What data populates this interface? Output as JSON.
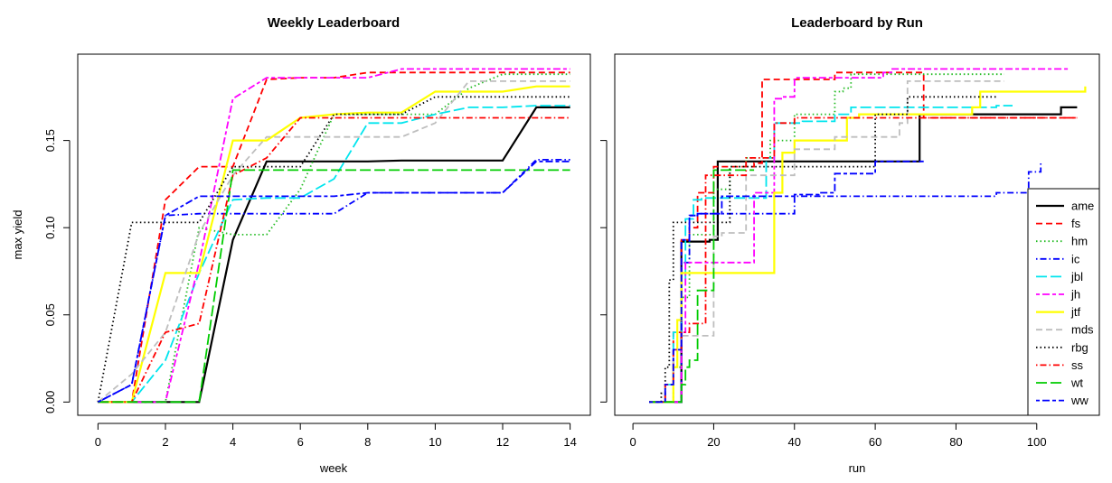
{
  "colors": {
    "ame": "#000000",
    "fs": "#ff0000",
    "hm": "#22bb22",
    "ic": "#0000ff",
    "jbl": "#00e5ee",
    "jh": "#ff00ff",
    "jtf": "#ffff00",
    "mds": "#bebebe",
    "rbg": "#000000",
    "ss": "#ff0000",
    "wt": "#00cc00",
    "ww": "#0000ff"
  },
  "legend": {
    "position": "bottom-right",
    "entries": [
      "ame",
      "fs",
      "hm",
      "ic",
      "jbl",
      "jh",
      "jtf",
      "mds",
      "rbg",
      "ss",
      "wt",
      "ww"
    ]
  },
  "chart_data": [
    {
      "type": "line",
      "title": "Weekly Leaderboard",
      "xlabel": "week",
      "ylabel": "max yield",
      "xlim": [
        -0.6,
        14.6
      ],
      "ylim": [
        -0.0076,
        0.1995
      ],
      "xticks": [
        0,
        2,
        4,
        6,
        8,
        10,
        12,
        14
      ],
      "yticks": [
        0.0,
        0.05,
        0.1,
        0.15
      ],
      "ytick_labels": [
        "0.00",
        "0.05",
        "0.10",
        "0.15"
      ],
      "grid": false,
      "series": [
        {
          "name": "ame",
          "style": "solid",
          "x": [
            0,
            1,
            2,
            3,
            4,
            5,
            6,
            7,
            8,
            9,
            10,
            11,
            12,
            13,
            14
          ],
          "y": [
            0,
            0,
            0,
            0,
            0.093,
            0.138,
            0.138,
            0.138,
            0.138,
            0.1385,
            0.1385,
            0.1385,
            0.1385,
            0.169,
            0.169
          ]
        },
        {
          "name": "fs",
          "style": "dashed",
          "x": [
            0,
            1,
            2,
            3,
            4,
            5,
            6,
            7,
            8,
            9,
            10,
            11,
            12,
            13,
            14
          ],
          "y": [
            0,
            0,
            0.116,
            0.135,
            0.135,
            0.185,
            0.186,
            0.186,
            0.189,
            0.189,
            0.189,
            0.189,
            0.189,
            0.189,
            0.189
          ]
        },
        {
          "name": "hm",
          "style": "dotted",
          "x": [
            0,
            1,
            2,
            3,
            4,
            5,
            6,
            7,
            8,
            9,
            10,
            11,
            12,
            13,
            14
          ],
          "y": [
            0,
            0,
            0,
            0.1,
            0.096,
            0.096,
            0.122,
            0.165,
            0.165,
            0.165,
            0.165,
            0.18,
            0.188,
            0.188,
            0.188
          ]
        },
        {
          "name": "ic",
          "style": "dashdot",
          "x": [
            0,
            1,
            2,
            3,
            4,
            5,
            6,
            7,
            8,
            9,
            10,
            11,
            12,
            13,
            14
          ],
          "y": [
            0,
            0.01,
            0.107,
            0.108,
            0.108,
            0.108,
            0.108,
            0.108,
            0.12,
            0.12,
            0.12,
            0.12,
            0.12,
            0.139,
            0.139
          ]
        },
        {
          "name": "jbl",
          "style": "longdash",
          "x": [
            0,
            1,
            2,
            3,
            4,
            5,
            6,
            7,
            8,
            9,
            10,
            11,
            12,
            13,
            14
          ],
          "y": [
            0,
            0,
            0.024,
            0.074,
            0.116,
            0.117,
            0.117,
            0.128,
            0.16,
            0.16,
            0.165,
            0.169,
            0.169,
            0.17,
            0.17
          ]
        },
        {
          "name": "jh",
          "style": "twodash",
          "x": [
            0,
            1,
            2,
            3,
            4,
            5,
            6,
            7,
            8,
            9,
            10,
            11,
            12,
            13,
            14
          ],
          "y": [
            0,
            0,
            0,
            0.08,
            0.174,
            0.186,
            0.186,
            0.186,
            0.186,
            0.191,
            0.191,
            0.191,
            0.191,
            0.191,
            0.191
          ]
        },
        {
          "name": "jtf",
          "style": "solid",
          "x": [
            0,
            1,
            2,
            3,
            4,
            5,
            6,
            7,
            8,
            9,
            10,
            11,
            12,
            13,
            14
          ],
          "y": [
            0,
            0,
            0.074,
            0.074,
            0.15,
            0.15,
            0.163,
            0.165,
            0.166,
            0.166,
            0.178,
            0.178,
            0.178,
            0.181,
            0.181
          ]
        },
        {
          "name": "mds",
          "style": "dashed",
          "x": [
            0,
            1,
            2,
            3,
            4,
            5,
            6,
            7,
            8,
            9,
            10,
            11,
            12,
            13,
            14
          ],
          "y": [
            0,
            0.016,
            0.04,
            0.097,
            0.13,
            0.152,
            0.152,
            0.152,
            0.152,
            0.152,
            0.16,
            0.184,
            0.184,
            0.184,
            0.184
          ]
        },
        {
          "name": "rbg",
          "style": "dotted",
          "x": [
            0,
            1,
            2,
            3,
            4,
            5,
            6,
            7,
            8,
            9,
            10,
            11,
            12,
            13,
            14
          ],
          "y": [
            0,
            0.103,
            0.103,
            0.103,
            0.135,
            0.135,
            0.135,
            0.165,
            0.165,
            0.165,
            0.175,
            0.175,
            0.175,
            0.175,
            0.175
          ]
        },
        {
          "name": "ss",
          "style": "dashdot",
          "x": [
            0,
            1,
            2,
            3,
            4,
            5,
            6,
            7,
            8,
            9,
            10,
            11,
            12,
            13,
            14
          ],
          "y": [
            0,
            0,
            0.04,
            0.045,
            0.13,
            0.14,
            0.163,
            0.163,
            0.163,
            0.163,
            0.163,
            0.163,
            0.163,
            0.163,
            0.163
          ]
        },
        {
          "name": "wt",
          "style": "longdash",
          "x": [
            0,
            1,
            2,
            3,
            4,
            5,
            6,
            7,
            8,
            9,
            10,
            11,
            12,
            13,
            14
          ],
          "y": [
            0,
            0,
            0,
            0,
            0.133,
            0.133,
            0.133,
            0.133,
            0.133,
            0.133,
            0.133,
            0.133,
            0.133,
            0.133,
            0.133
          ]
        },
        {
          "name": "ww",
          "style": "twodash",
          "x": [
            0,
            1,
            2,
            3,
            4,
            5,
            6,
            7,
            8,
            9,
            10,
            11,
            12,
            13,
            14
          ],
          "y": [
            0,
            0.01,
            0.107,
            0.118,
            0.118,
            0.118,
            0.118,
            0.118,
            0.12,
            0.12,
            0.12,
            0.12,
            0.12,
            0.138,
            0.138
          ]
        }
      ]
    },
    {
      "type": "line",
      "title": "Leaderboard by Run",
      "xlabel": "run",
      "ylabel": "",
      "xlim": [
        -4.5,
        115.5
      ],
      "ylim": [
        -0.0076,
        0.1995
      ],
      "xticks": [
        0,
        20,
        40,
        60,
        80,
        100
      ],
      "yticks": [
        0.0,
        0.05,
        0.1,
        0.15
      ],
      "grid": false,
      "step": true,
      "series": [
        {
          "name": "ame",
          "style": "solid",
          "x": [
            4,
            11,
            12,
            19,
            21,
            30,
            40,
            50,
            60,
            70,
            71,
            80,
            90,
            100,
            106,
            110
          ],
          "y": [
            0,
            0,
            0.092,
            0.093,
            0.138,
            0.138,
            0.138,
            0.138,
            0.138,
            0.138,
            0.165,
            0.165,
            0.165,
            0.165,
            0.169,
            0.169
          ]
        },
        {
          "name": "fs",
          "style": "dashed",
          "x": [
            4,
            8,
            10,
            12,
            14,
            16,
            20,
            25,
            27,
            30,
            32,
            40,
            46,
            50,
            55,
            62,
            68,
            72,
            110
          ],
          "y": [
            0,
            0.01,
            0.04,
            0.093,
            0.1,
            0.12,
            0.135,
            0.135,
            0.135,
            0.137,
            0.185,
            0.185,
            0.185,
            0.189,
            0.189,
            0.189,
            0.189,
            0.163,
            0.163
          ]
        },
        {
          "name": "hm",
          "style": "dotted",
          "x": [
            4,
            8,
            10,
            12,
            14,
            17,
            20,
            24,
            28,
            34,
            40,
            45,
            50,
            52,
            54,
            64,
            92
          ],
          "y": [
            0,
            0,
            0.02,
            0.06,
            0.096,
            0.096,
            0.122,
            0.135,
            0.14,
            0.15,
            0.165,
            0.165,
            0.178,
            0.18,
            0.188,
            0.188,
            0.188
          ]
        },
        {
          "name": "ic",
          "style": "dashdot",
          "x": [
            4,
            5,
            12,
            14,
            16,
            20,
            30,
            38,
            40,
            44,
            50,
            70,
            80,
            84,
            88,
            90,
            98,
            100,
            101
          ],
          "y": [
            0,
            0,
            0.08,
            0.107,
            0.108,
            0.108,
            0.108,
            0.108,
            0.118,
            0.118,
            0.118,
            0.118,
            0.118,
            0.118,
            0.118,
            0.12,
            0.132,
            0.132,
            0.138
          ]
        },
        {
          "name": "jbl",
          "style": "longdash",
          "x": [
            4,
            8,
            10,
            12,
            13,
            15,
            17,
            20,
            25,
            30,
            33,
            35,
            37,
            40,
            42,
            50,
            54,
            70,
            90,
            94
          ],
          "y": [
            0,
            0.01,
            0.04,
            0.07,
            0.105,
            0.116,
            0.117,
            0.117,
            0.117,
            0.117,
            0.14,
            0.16,
            0.16,
            0.16,
            0.161,
            0.165,
            0.169,
            0.169,
            0.17,
            0.17
          ]
        },
        {
          "name": "jh",
          "style": "twodash",
          "x": [
            4,
            10,
            12,
            13,
            15,
            17,
            20,
            25,
            30,
            35,
            37,
            40,
            50,
            62,
            64,
            80,
            100,
            108
          ],
          "y": [
            0,
            0,
            0.04,
            0.08,
            0.08,
            0.08,
            0.08,
            0.08,
            0.12,
            0.174,
            0.175,
            0.186,
            0.186,
            0.189,
            0.191,
            0.191,
            0.191,
            0.191
          ]
        },
        {
          "name": "jtf",
          "style": "solid",
          "x": [
            4,
            8,
            10,
            11,
            12,
            14,
            17,
            20,
            30,
            33,
            35,
            37,
            40,
            50,
            53,
            56,
            70,
            80,
            84,
            86,
            110,
            112
          ],
          "y": [
            0,
            0,
            0.02,
            0.047,
            0.074,
            0.074,
            0.074,
            0.074,
            0.074,
            0.074,
            0.12,
            0.143,
            0.15,
            0.15,
            0.163,
            0.165,
            0.165,
            0.165,
            0.169,
            0.178,
            0.178,
            0.181
          ]
        },
        {
          "name": "mds",
          "style": "dashed",
          "x": [
            4,
            8,
            10,
            12,
            14,
            17,
            20,
            22,
            24,
            28,
            32,
            36,
            40,
            50,
            56,
            60,
            66,
            68,
            80,
            92
          ],
          "y": [
            0,
            0.01,
            0.03,
            0.038,
            0.038,
            0.038,
            0.095,
            0.097,
            0.097,
            0.13,
            0.13,
            0.13,
            0.145,
            0.152,
            0.152,
            0.152,
            0.16,
            0.184,
            0.184,
            0.184
          ]
        },
        {
          "name": "rbg",
          "style": "dotted",
          "x": [
            4,
            7,
            8,
            9,
            10,
            14,
            20,
            24,
            30,
            40,
            50,
            60,
            66,
            68,
            70,
            80,
            90
          ],
          "y": [
            0,
            0.005,
            0.02,
            0.07,
            0.103,
            0.103,
            0.103,
            0.135,
            0.135,
            0.135,
            0.135,
            0.165,
            0.165,
            0.175,
            0.175,
            0.175,
            0.175
          ]
        },
        {
          "name": "ss",
          "style": "dashdot",
          "x": [
            4,
            8,
            10,
            12,
            14,
            18,
            20,
            24,
            28,
            30,
            32,
            35,
            40,
            50,
            60,
            70,
            80,
            90,
            100,
            110
          ],
          "y": [
            0,
            0.01,
            0.03,
            0.04,
            0.045,
            0.13,
            0.13,
            0.13,
            0.14,
            0.14,
            0.14,
            0.16,
            0.163,
            0.163,
            0.163,
            0.163,
            0.163,
            0.163,
            0.163,
            0.163
          ]
        },
        {
          "name": "wt",
          "style": "longdash",
          "x": [
            4,
            10,
            12,
            13,
            14,
            16,
            18,
            20,
            22,
            30
          ],
          "y": [
            0,
            0,
            0.01,
            0.02,
            0.024,
            0.064,
            0.064,
            0.133,
            0.133,
            0.133
          ]
        },
        {
          "name": "ww",
          "style": "twodash",
          "x": [
            4,
            8,
            10,
            12,
            14,
            16,
            18,
            20,
            22,
            26,
            30,
            32,
            34,
            36,
            38,
            40,
            44,
            46,
            50,
            58,
            60,
            72
          ],
          "y": [
            0,
            0.01,
            0.03,
            0.093,
            0.107,
            0.108,
            0.108,
            0.108,
            0.118,
            0.118,
            0.118,
            0.118,
            0.118,
            0.118,
            0.118,
            0.119,
            0.119,
            0.12,
            0.131,
            0.131,
            0.138,
            0.138
          ]
        }
      ]
    }
  ]
}
